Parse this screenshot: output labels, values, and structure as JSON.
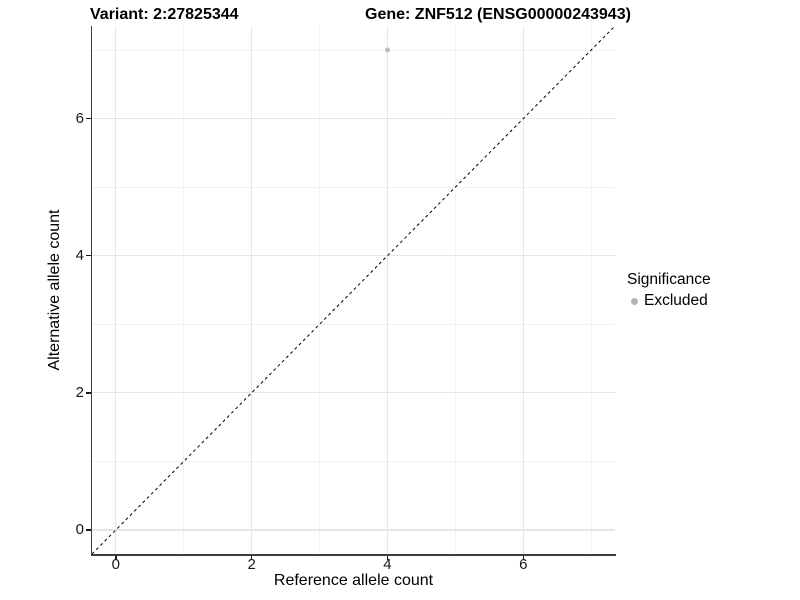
{
  "chart_data": {
    "type": "scatter",
    "title": "Variant: 2:27825344        Gene: ZNF512 (ENSG00000243943)",
    "title_parts": {
      "variant": "Variant: 2:27825344",
      "gene": "Gene: ZNF512 (ENSG00000243943)"
    },
    "xlabel": "Reference allele count",
    "ylabel": "Alternative allele count",
    "xlim": [
      -0.35,
      7.35
    ],
    "ylim": [
      -0.35,
      7.35
    ],
    "x_major_ticks": [
      0,
      2,
      4,
      6
    ],
    "x_minor_ticks": [
      1,
      3,
      5,
      7
    ],
    "y_major_ticks": [
      0,
      2,
      4,
      6
    ],
    "y_minor_ticks": [
      1,
      3,
      5,
      7
    ],
    "grid": {
      "major": true,
      "minor": true
    },
    "series": [
      {
        "name": "Excluded",
        "color": "#bdbdbd",
        "points": [
          [
            4,
            7
          ]
        ],
        "point_radius": 2.5
      }
    ],
    "reference_line": {
      "kind": "identity y=x",
      "style": "dashed",
      "color": "#000000",
      "from": [
        -0.35,
        -0.35
      ],
      "to": [
        7.35,
        7.35
      ]
    },
    "legend": {
      "position": "right",
      "title": "Significance",
      "entries": [
        {
          "label": "Excluded",
          "color": "#b3b3b3"
        }
      ]
    },
    "colors": {
      "background": "#ffffff",
      "grid_major": "#e6e6e6",
      "grid_minor": "#f2f2f2",
      "axis_line": "#3c3c3c",
      "tick_mark": "#1a1a1a",
      "axis_text": "#1a1a1a"
    }
  }
}
